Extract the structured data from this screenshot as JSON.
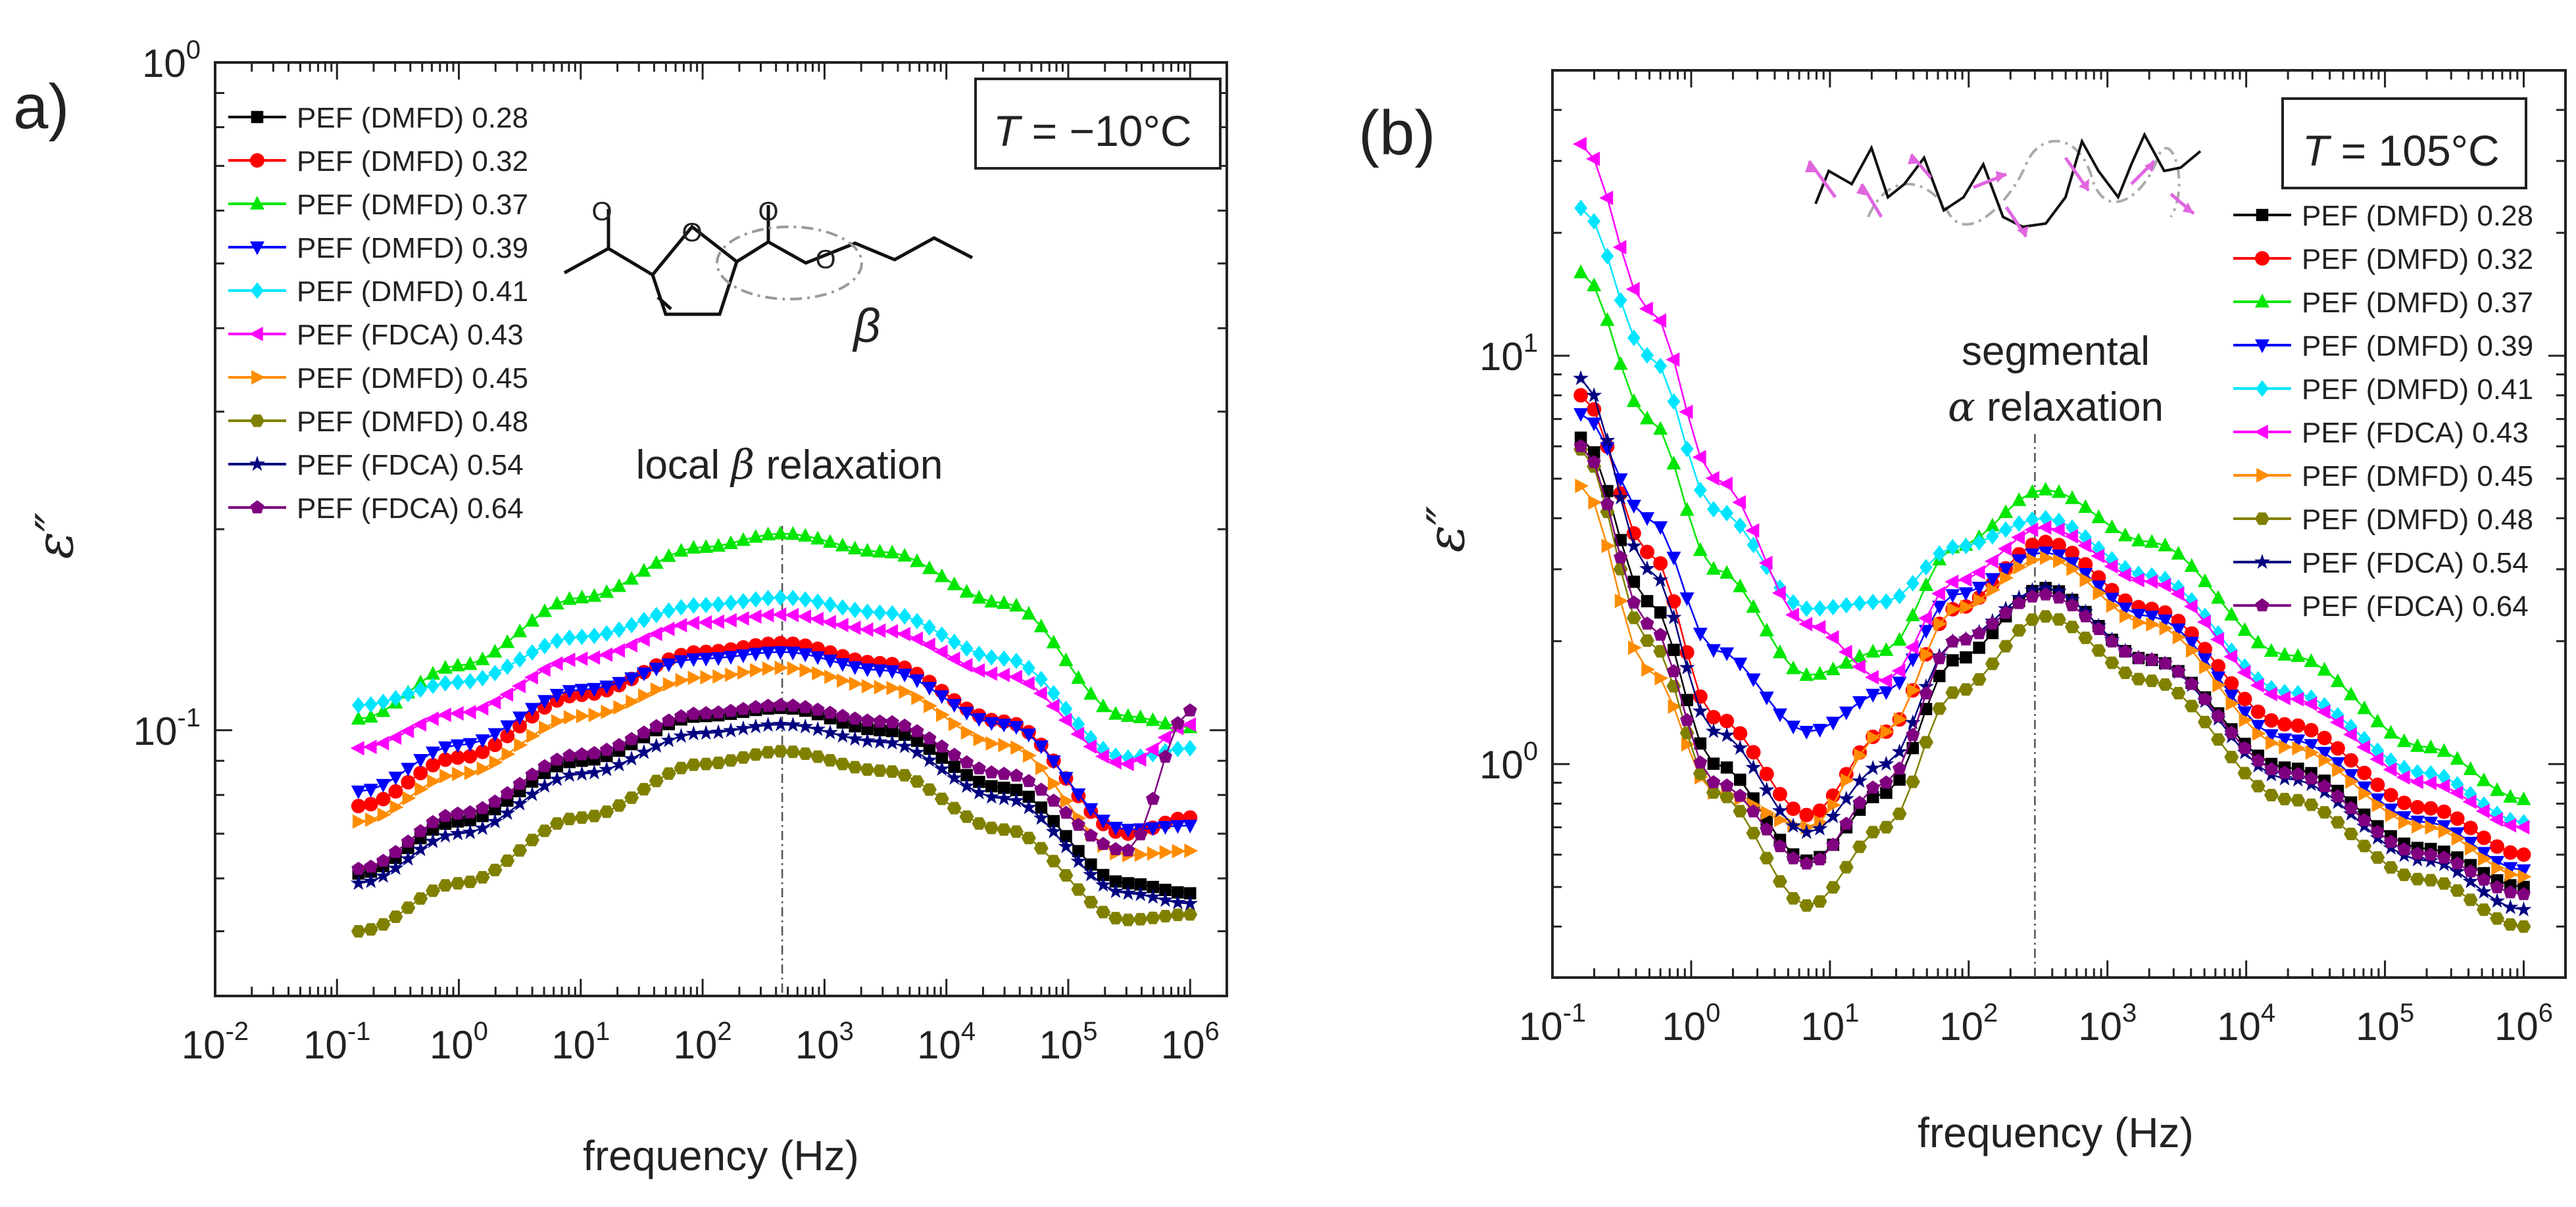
{
  "chart_data": [
    {
      "type": "scatter",
      "panel_label": "a)",
      "temperature": {
        "prefix": "T",
        "text": " = −10°C"
      },
      "xlabel": "frequency (Hz)",
      "ylabel": "ε″",
      "x_scale": "log",
      "y_scale": "log",
      "xlim": [
        0.01,
        2000000
      ],
      "ylim": [
        0.04,
        1.0
      ],
      "x_ticks": [
        {
          "base": "10",
          "exp": "-2"
        },
        {
          "base": "10",
          "exp": "-1"
        },
        {
          "base": "10",
          "exp": "0"
        },
        {
          "base": "10",
          "exp": "1"
        },
        {
          "base": "10",
          "exp": "2"
        },
        {
          "base": "10",
          "exp": "3"
        },
        {
          "base": "10",
          "exp": "4"
        },
        {
          "base": "10",
          "exp": "5"
        },
        {
          "base": "10",
          "exp": "6"
        }
      ],
      "y_ticks": [
        {
          "base": "10",
          "exp": "-1"
        },
        {
          "base": "10",
          "exp": "0"
        }
      ],
      "annotation": {
        "pre": "local ",
        "symbol": "β",
        "post": " relaxation",
        "x": 450
      },
      "structure_label": "β",
      "legend": [
        {
          "name": "PEF (DMFD) 0.28",
          "color": "#000000",
          "marker": "square"
        },
        {
          "name": "PEF (DMFD) 0.32",
          "color": "#ff0000",
          "marker": "circle"
        },
        {
          "name": "PEF (DMFD) 0.37",
          "color": "#00e600",
          "marker": "triangle-up"
        },
        {
          "name": "PEF (DMFD) 0.39",
          "color": "#0000ff",
          "marker": "triangle-down"
        },
        {
          "name": "PEF (DMFD) 0.41",
          "color": "#00e5ff",
          "marker": "diamond"
        },
        {
          "name": "PEF (FDCA) 0.43",
          "color": "#ff00ff",
          "marker": "triangle-left"
        },
        {
          "name": "PEF (DMFD) 0.45",
          "color": "#ff8c00",
          "marker": "triangle-right"
        },
        {
          "name": "PEF (DMFD) 0.48",
          "color": "#808000",
          "marker": "hexagon"
        },
        {
          "name": "PEF (FDCA) 0.54",
          "color": "#000080",
          "marker": "star"
        },
        {
          "name": "PEF (FDCA) 0.64",
          "color": "#800080",
          "marker": "pentagon"
        }
      ],
      "series": [
        {
          "name": "PEF (DMFD) 0.28",
          "x": [
            0.15,
            1,
            10,
            100,
            450,
            3000,
            30000,
            300000,
            1000000
          ],
          "y": [
            0.061,
            0.073,
            0.09,
            0.105,
            0.108,
            0.1,
            0.082,
            0.059,
            0.057
          ]
        },
        {
          "name": "PEF (DMFD) 0.32",
          "x": [
            0.15,
            1,
            10,
            100,
            450,
            3000,
            30000,
            300000,
            1000000
          ],
          "y": [
            0.077,
            0.091,
            0.113,
            0.131,
            0.135,
            0.126,
            0.103,
            0.07,
            0.074
          ]
        },
        {
          "name": "PEF (DMFD) 0.37",
          "x": [
            0.15,
            1,
            10,
            100,
            450,
            3000,
            30000,
            300000,
            1000000
          ],
          "y": [
            0.104,
            0.125,
            0.158,
            0.188,
            0.197,
            0.185,
            0.155,
            0.105,
            0.101
          ]
        },
        {
          "name": "PEF (DMFD) 0.39",
          "x": [
            0.15,
            1,
            10,
            100,
            450,
            3000,
            30000,
            300000,
            1000000
          ],
          "y": [
            0.081,
            0.095,
            0.115,
            0.128,
            0.131,
            0.123,
            0.102,
            0.071,
            0.072
          ]
        },
        {
          "name": "PEF (DMFD) 0.41",
          "x": [
            0.15,
            1,
            10,
            100,
            450,
            3000,
            30000,
            300000,
            1000000
          ],
          "y": [
            0.109,
            0.118,
            0.138,
            0.154,
            0.158,
            0.15,
            0.128,
            0.091,
            0.094
          ]
        },
        {
          "name": "PEF (FDCA) 0.43",
          "x": [
            0.15,
            1,
            10,
            100,
            450,
            3000,
            30000,
            300000,
            1000000
          ],
          "y": [
            0.094,
            0.106,
            0.128,
            0.145,
            0.149,
            0.141,
            0.121,
            0.089,
            0.102
          ]
        },
        {
          "name": "PEF (DMFD) 0.45",
          "x": [
            0.15,
            1,
            10,
            100,
            450,
            3000,
            30000,
            300000,
            1000000
          ],
          "y": [
            0.073,
            0.086,
            0.105,
            0.12,
            0.124,
            0.116,
            0.095,
            0.065,
            0.066
          ]
        },
        {
          "name": "PEF (DMFD) 0.48",
          "x": [
            0.15,
            1,
            10,
            100,
            450,
            3000,
            30000,
            300000,
            1000000
          ],
          "y": [
            0.05,
            0.059,
            0.074,
            0.089,
            0.093,
            0.087,
            0.071,
            0.052,
            0.053
          ]
        },
        {
          "name": "PEF (FDCA) 0.54",
          "x": [
            0.15,
            1,
            10,
            100,
            450,
            3000,
            30000,
            300000,
            1000000
          ],
          "y": [
            0.059,
            0.07,
            0.086,
            0.099,
            0.102,
            0.096,
            0.079,
            0.057,
            0.055
          ]
        },
        {
          "name": "PEF (FDCA) 0.64",
          "x": [
            0.15,
            1,
            10,
            100,
            450,
            3000,
            30000,
            300000,
            1000000
          ],
          "y": [
            0.062,
            0.075,
            0.092,
            0.106,
            0.109,
            0.103,
            0.086,
            0.066,
            0.107
          ]
        }
      ]
    },
    {
      "type": "scatter",
      "panel_label": "(b)",
      "temperature": {
        "prefix": "T",
        "text": " = 105°C"
      },
      "xlabel": "frequency (Hz)",
      "ylabel": "ε″",
      "x_scale": "log",
      "y_scale": "log",
      "xlim": [
        0.1,
        2000000
      ],
      "ylim": [
        0.3,
        50
      ],
      "x_ticks": [
        {
          "base": "10",
          "exp": "-1"
        },
        {
          "base": "10",
          "exp": "0"
        },
        {
          "base": "10",
          "exp": "1"
        },
        {
          "base": "10",
          "exp": "2"
        },
        {
          "base": "10",
          "exp": "3"
        },
        {
          "base": "10",
          "exp": "4"
        },
        {
          "base": "10",
          "exp": "5"
        },
        {
          "base": "10",
          "exp": "6"
        }
      ],
      "y_ticks": [
        {
          "base": "10",
          "exp": "0"
        },
        {
          "base": "10",
          "exp": "1"
        }
      ],
      "annotation": {
        "line1": "segmental",
        "symbol": "α",
        "post": " relaxation",
        "x": 300
      },
      "legend": [
        {
          "name": "PEF (DMFD) 0.28",
          "color": "#000000",
          "marker": "square"
        },
        {
          "name": "PEF (DMFD) 0.32",
          "color": "#ff0000",
          "marker": "circle"
        },
        {
          "name": "PEF (DMFD) 0.37",
          "color": "#00e600",
          "marker": "triangle-up"
        },
        {
          "name": "PEF (DMFD) 0.39",
          "color": "#0000ff",
          "marker": "triangle-down"
        },
        {
          "name": "PEF (DMFD) 0.41",
          "color": "#00e5ff",
          "marker": "diamond"
        },
        {
          "name": "PEF (FDCA) 0.43",
          "color": "#ff00ff",
          "marker": "triangle-left"
        },
        {
          "name": "PEF (DMFD) 0.45",
          "color": "#ff8c00",
          "marker": "triangle-right"
        },
        {
          "name": "PEF (DMFD) 0.48",
          "color": "#808000",
          "marker": "hexagon"
        },
        {
          "name": "PEF (FDCA) 0.54",
          "color": "#000080",
          "marker": "star"
        },
        {
          "name": "PEF (FDCA) 0.64",
          "color": "#800080",
          "marker": "pentagon"
        }
      ],
      "series": [
        {
          "name": "PEF (DMFD) 0.28",
          "x": [
            0.16,
            0.5,
            1.5,
            7,
            25,
            80,
            350,
            2000,
            20000,
            200000,
            1000000
          ],
          "y": [
            6.3,
            2.5,
            1.0,
            0.58,
            0.85,
            1.8,
            2.7,
            1.8,
            0.98,
            0.62,
            0.5
          ]
        },
        {
          "name": "PEF (DMFD) 0.32",
          "x": [
            0.16,
            0.5,
            1.5,
            7,
            25,
            80,
            350,
            2000,
            20000,
            200000,
            1000000
          ],
          "y": [
            8.0,
            3.3,
            1.3,
            0.75,
            1.2,
            2.4,
            3.5,
            2.4,
            1.25,
            0.78,
            0.6
          ]
        },
        {
          "name": "PEF (DMFD) 0.37",
          "x": [
            0.16,
            0.5,
            1.5,
            7,
            25,
            80,
            350,
            2000,
            20000,
            200000,
            1000000
          ],
          "y": [
            16.0,
            7.0,
            3.0,
            1.65,
            1.9,
            3.4,
            4.7,
            3.5,
            1.85,
            1.1,
            0.82
          ]
        },
        {
          "name": "PEF (DMFD) 0.39",
          "x": [
            0.16,
            0.5,
            1.5,
            7,
            25,
            80,
            350,
            2000,
            20000,
            200000,
            1000000
          ],
          "y": [
            7.2,
            4.0,
            1.9,
            1.2,
            1.5,
            2.6,
            3.3,
            2.3,
            1.15,
            0.72,
            0.55
          ]
        },
        {
          "name": "PEF (DMFD) 0.41",
          "x": [
            0.16,
            0.5,
            1.5,
            7,
            25,
            80,
            350,
            2000,
            20000,
            200000,
            1000000
          ],
          "y": [
            23,
            10,
            4.2,
            2.4,
            2.5,
            3.4,
            4.0,
            2.9,
            1.5,
            0.95,
            0.72
          ]
        },
        {
          "name": "PEF (FDCA) 0.43",
          "x": [
            0.16,
            0.5,
            1.5,
            7,
            25,
            80,
            350,
            2000,
            20000,
            200000,
            1000000
          ],
          "y": [
            33,
            13,
            5.0,
            2.2,
            1.6,
            2.8,
            3.8,
            2.8,
            1.45,
            0.9,
            0.7
          ]
        },
        {
          "name": "PEF (DMFD) 0.45",
          "x": [
            0.16,
            0.5,
            1.5,
            7,
            25,
            80,
            350,
            2000,
            20000,
            200000,
            1000000
          ],
          "y": [
            4.8,
            1.7,
            0.85,
            0.7,
            1.2,
            2.4,
            3.2,
            2.2,
            1.1,
            0.7,
            0.53
          ]
        },
        {
          "name": "PEF (DMFD) 0.48",
          "x": [
            0.16,
            0.5,
            1.5,
            7,
            25,
            80,
            350,
            2000,
            20000,
            200000,
            1000000
          ],
          "y": [
            5.9,
            2.0,
            0.85,
            0.45,
            0.7,
            1.5,
            2.3,
            1.6,
            0.82,
            0.52,
            0.4
          ]
        },
        {
          "name": "PEF (FDCA) 0.54",
          "x": [
            0.16,
            0.5,
            1.5,
            7,
            25,
            80,
            350,
            2000,
            20000,
            200000,
            1000000
          ],
          "y": [
            8.8,
            3.0,
            1.2,
            0.68,
            1.0,
            2.0,
            2.7,
            1.8,
            0.92,
            0.58,
            0.44
          ]
        },
        {
          "name": "PEF (FDCA) 0.64",
          "x": [
            0.16,
            0.5,
            1.5,
            7,
            25,
            80,
            350,
            2000,
            20000,
            200000,
            1000000
          ],
          "y": [
            6.0,
            2.2,
            0.9,
            0.57,
            0.9,
            2.0,
            2.6,
            1.8,
            0.95,
            0.6,
            0.48
          ]
        }
      ]
    }
  ]
}
